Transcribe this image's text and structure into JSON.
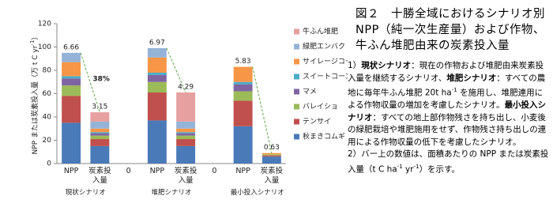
{
  "chart_data": {
    "type": "stacked_bar",
    "y_label": {
      "text": "NPP または炭素投入量（万 t C yr",
      "sup": "-1",
      "end": "）"
    },
    "categories": [
      "NPP",
      "炭素投入量",
      "0",
      "NPP",
      "炭素投入量",
      "0",
      "NPP",
      "炭素投入量"
    ],
    "groups": [
      "現状シナリオ",
      "堆肥シナリオ",
      "最小投入シナリオ"
    ],
    "series": [
      {
        "name": "秋まきコムギ",
        "color": "#4a7ab8",
        "values": [
          35,
          15,
          null,
          37,
          15,
          null,
          32,
          6
        ]
      },
      {
        "name": "テンサイ",
        "color": "#c0504d",
        "values": [
          23,
          6,
          null,
          24,
          6,
          null,
          22,
          1
        ]
      },
      {
        "name": "バレイショ",
        "color": "#9bbb59",
        "values": [
          9,
          3,
          null,
          9,
          3,
          null,
          8,
          1
        ]
      },
      {
        "name": "マメ",
        "color": "#8064a2",
        "values": [
          6,
          2,
          null,
          6,
          2,
          null,
          6,
          0
        ]
      },
      {
        "name": "スイートコーン",
        "color": "#4bacc6",
        "values": [
          2,
          1,
          null,
          2,
          1,
          null,
          2,
          0
        ]
      },
      {
        "name": "サイレージコーン",
        "color": "#f79646",
        "values": [
          12,
          3,
          null,
          13,
          3,
          null,
          13,
          1
        ]
      },
      {
        "name": "緑肥エンバク",
        "color": "#95b3d7",
        "values": [
          8,
          6,
          null,
          8,
          6,
          null,
          0,
          0
        ]
      },
      {
        "name": "牛ふん堆肥",
        "color": "#e6a0a0",
        "values": [
          0,
          8,
          null,
          0,
          25,
          null,
          0,
          0
        ]
      }
    ],
    "top_labels": [
      "6.66",
      "3.15",
      null,
      "6.97",
      "4.29",
      null,
      "5.83",
      "0.63"
    ],
    "annotation": "38%",
    "ylim": [
      0,
      120
    ],
    "yticks": [
      0,
      20,
      40,
      60,
      80,
      100,
      120
    ]
  },
  "caption": {
    "title": "図２　十勝全域におけるシナリオ別 NPP（純一次生産量）および作物、牛ふん堆肥由来の炭素投入量",
    "note1": [
      "1）",
      "現状シナリオ",
      "：現在の作物および堆肥由来炭素投入量を継続するシナリオ、",
      "堆肥シナリオ",
      "：すべての農地に毎年牛ふん堆肥 20t ha",
      "-1",
      " を施用し、堆肥連用による作物収量の増加を考慮したシナリオ。",
      "最小投入シナリオ",
      "：すべての地上部作物残さを持ち出し、小麦後の緑肥栽培や堆肥施用をせず、作物残さ持ち出しの連用による作物収量の低下を考慮したシナリオ。"
    ],
    "note2": [
      "2）バー上の数値は、面積あたりの NPP または炭素投入量（t C ha",
      "-1",
      " yr",
      "-1",
      "）を示す。"
    ]
  }
}
